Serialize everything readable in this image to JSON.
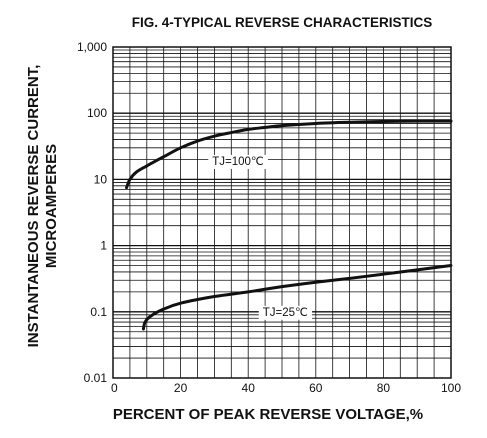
{
  "chart_data": {
    "type": "line",
    "title": "FIG. 4-TYPICAL REVERSE CHARACTERISTICS",
    "xlabel": "PERCENT OF PEAK REVERSE VOLTAGE,%",
    "ylabel_line1": "INSTANTANEOUS REVERSE CURRENT,",
    "ylabel_line2": "MICROAMPERES",
    "xlim": [
      0,
      100
    ],
    "ylim": [
      0.01,
      1000
    ],
    "yscale": "log",
    "grid": true,
    "x_ticks": [
      {
        "value": 0,
        "label": "0"
      },
      {
        "value": 20,
        "label": "20"
      },
      {
        "value": 40,
        "label": "40"
      },
      {
        "value": 60,
        "label": "60"
      },
      {
        "value": 80,
        "label": "80"
      },
      {
        "value": 100,
        "label": "100"
      }
    ],
    "y_ticks": [
      {
        "value": 0.01,
        "label": "0.01"
      },
      {
        "value": 0.1,
        "label": "0.1"
      },
      {
        "value": 1,
        "label": "1"
      },
      {
        "value": 10,
        "label": "10"
      },
      {
        "value": 100,
        "label": "100"
      },
      {
        "value": 1000,
        "label": "1,000"
      }
    ],
    "series": [
      {
        "name": "TJ=100℃",
        "label_at": [
          37,
          19
        ],
        "points": [
          [
            4,
            7.5
          ],
          [
            5,
            10
          ],
          [
            7,
            13
          ],
          [
            10,
            16
          ],
          [
            15,
            22
          ],
          [
            20,
            30
          ],
          [
            25,
            38
          ],
          [
            30,
            45
          ],
          [
            35,
            51
          ],
          [
            40,
            57
          ],
          [
            45,
            61
          ],
          [
            50,
            65
          ],
          [
            60,
            70
          ],
          [
            70,
            73
          ],
          [
            80,
            75
          ],
          [
            90,
            76
          ],
          [
            100,
            76
          ]
        ]
      },
      {
        "name": "TJ=25℃",
        "label_at": [
          51,
          0.1
        ],
        "points": [
          [
            9,
            0.055
          ],
          [
            9.5,
            0.07
          ],
          [
            11,
            0.085
          ],
          [
            15,
            0.11
          ],
          [
            20,
            0.135
          ],
          [
            30,
            0.17
          ],
          [
            40,
            0.2
          ],
          [
            50,
            0.24
          ],
          [
            60,
            0.28
          ],
          [
            70,
            0.32
          ],
          [
            80,
            0.37
          ],
          [
            90,
            0.43
          ],
          [
            100,
            0.5
          ]
        ]
      }
    ]
  }
}
